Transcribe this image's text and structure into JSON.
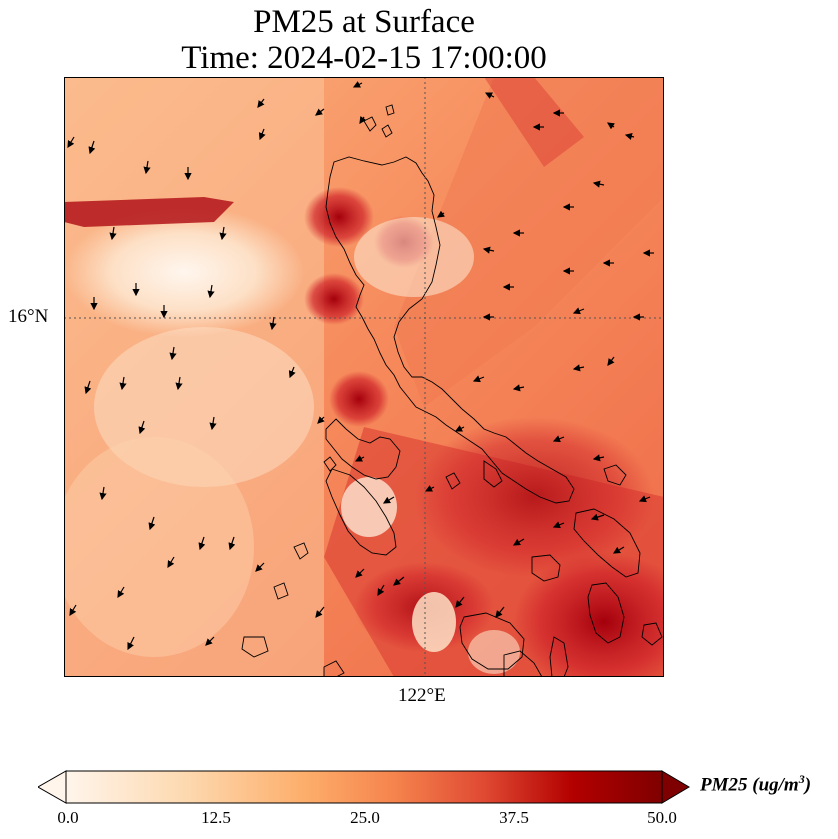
{
  "title": {
    "line1": "PM25 at Surface",
    "line2": "Time: 2024-02-15 17:00:00"
  },
  "map": {
    "field": "PM25",
    "level": "Surface",
    "lat_gridline_label": "16°N",
    "lon_gridline_label": "122°E",
    "colormap": [
      "#fff5eb",
      "#fdd9b0",
      "#fdae6b",
      "#f16913",
      "#d94801",
      "#b30000",
      "#7f0000"
    ],
    "wind_vectors": "shown",
    "coastlines": "shown"
  },
  "colorbar": {
    "label": "PM25 (ug/m³)",
    "label_main": "PM25 (ug/m",
    "label_sup": "3",
    "label_end": ")",
    "min": 0.0,
    "max": 50.0,
    "extend": "both",
    "ticks": [
      "0.0",
      "12.5",
      "25.0",
      "37.5",
      "50.0"
    ]
  }
}
